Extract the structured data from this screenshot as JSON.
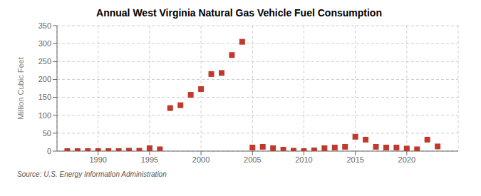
{
  "chart_data": {
    "type": "scatter",
    "title": "Annual West Virginia Natural Gas Vehicle Fuel Consumption",
    "ylabel": "Million Cubic Feet",
    "source": "Source: U.S. Energy Information Administration",
    "color": "#c0392b",
    "marker": "square",
    "x": [
      1987,
      1988,
      1989,
      1990,
      1991,
      1992,
      1993,
      1994,
      1995,
      1996,
      1997,
      1998,
      1999,
      2000,
      2001,
      2002,
      2003,
      2004,
      2005,
      2006,
      2007,
      2008,
      2009,
      2010,
      2011,
      2012,
      2013,
      2014,
      2015,
      2016,
      2017,
      2018,
      2019,
      2020,
      2021,
      2022,
      2023
    ],
    "values": [
      0,
      0,
      0,
      0,
      0,
      0,
      1,
      1,
      8,
      5,
      120,
      128,
      157,
      173,
      215,
      218,
      268,
      305,
      10,
      12,
      8,
      4,
      1,
      0,
      2,
      8,
      10,
      12,
      40,
      32,
      12,
      10,
      10,
      7,
      5,
      32,
      13
    ],
    "xlim": [
      1986,
      2025
    ],
    "xticks": [
      1990,
      1995,
      2000,
      2005,
      2010,
      2015,
      2020
    ],
    "ylim": [
      0,
      350
    ],
    "yticks": [
      0,
      50,
      100,
      150,
      200,
      250,
      300,
      350
    ],
    "grid": true
  }
}
